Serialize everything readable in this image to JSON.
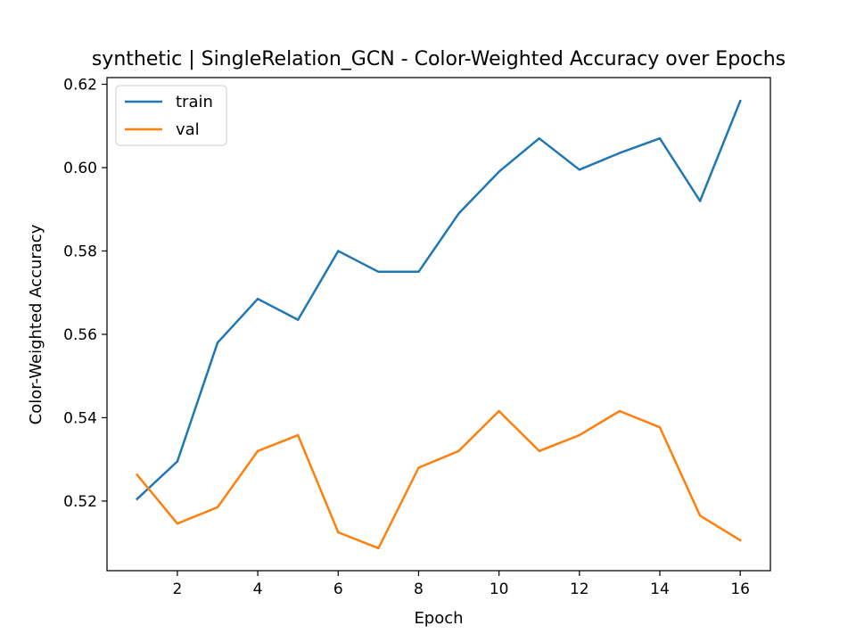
{
  "chart_data": {
    "type": "line",
    "title": "synthetic | SingleRelation_GCN - Color-Weighted Accuracy over Epochs",
    "xlabel": "Epoch",
    "ylabel": "Color-Weighted Accuracy",
    "x": [
      1,
      2,
      3,
      4,
      5,
      6,
      7,
      8,
      9,
      10,
      11,
      12,
      13,
      14,
      15,
      16
    ],
    "xlim": [
      0.25,
      16.75
    ],
    "ylim": [
      0.5033,
      0.6216
    ],
    "xticks": [
      2,
      4,
      6,
      8,
      10,
      12,
      14,
      16
    ],
    "yticks": [
      0.52,
      0.54,
      0.56,
      0.58,
      0.6,
      0.62
    ],
    "xtick_labels": [
      "2",
      "4",
      "6",
      "8",
      "10",
      "12",
      "14",
      "16"
    ],
    "ytick_labels": [
      "0.52",
      "0.54",
      "0.56",
      "0.58",
      "0.60",
      "0.62"
    ],
    "grid": false,
    "legend_position": "upper-left",
    "series": [
      {
        "name": "train",
        "color": "#1f77b4",
        "values": [
          0.5205,
          0.5295,
          0.558,
          0.5685,
          0.5635,
          0.58,
          0.575,
          0.575,
          0.589,
          0.599,
          0.607,
          0.5995,
          0.6035,
          0.607,
          0.592,
          0.616
        ]
      },
      {
        "name": "val",
        "color": "#ff7f0e",
        "values": [
          0.5263,
          0.5146,
          0.5185,
          0.532,
          0.5358,
          0.5125,
          0.5087,
          0.528,
          0.532,
          0.5416,
          0.532,
          0.5358,
          0.5416,
          0.5377,
          0.5165,
          0.5106
        ]
      }
    ]
  }
}
